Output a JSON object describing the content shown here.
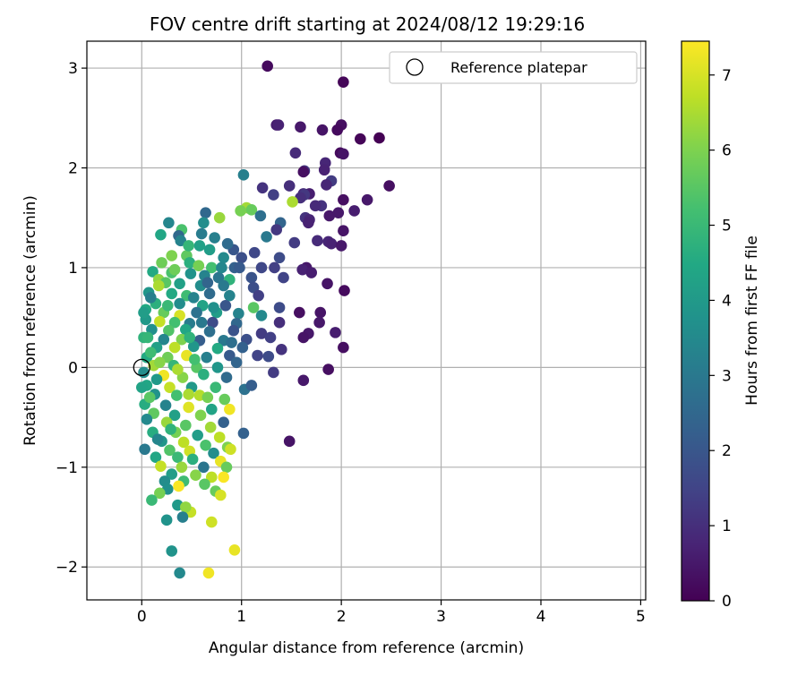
{
  "chart_data": {
    "type": "scatter",
    "title": "FOV centre drift starting at 2024/08/12 19:29:16",
    "xlabel": "Angular distance from reference (arcmin)",
    "ylabel": "Rotation from reference (arcmin)",
    "xlim": [
      -0.55,
      5.05
    ],
    "ylim": [
      -2.33,
      3.27
    ],
    "xticks": [
      0,
      1,
      2,
      3,
      4,
      5
    ],
    "xtick_labels": [
      "0",
      "1",
      "2",
      "3",
      "4",
      "5"
    ],
    "yticks": [
      -2,
      -1,
      0,
      1,
      2,
      3
    ],
    "ytick_labels": [
      "−2",
      "−1",
      "0",
      "1",
      "2",
      "3"
    ],
    "grid": true,
    "legend": {
      "location": "upper right",
      "entries": [
        "Reference platepar"
      ]
    },
    "reference_point": {
      "x": 0.0,
      "y": 0.0
    },
    "colorbar": {
      "label": "Hours from first FF file",
      "colormap": "viridis",
      "range": [
        0,
        7.45
      ],
      "ticks": [
        0,
        1,
        2,
        3,
        4,
        5,
        6,
        7
      ],
      "tick_labels": [
        "0",
        "1",
        "2",
        "3",
        "4",
        "5",
        "6",
        "7"
      ]
    },
    "points": [
      [
        1.26,
        3.02,
        0.2
      ],
      [
        2.02,
        2.86,
        0.1
      ],
      [
        1.35,
        2.43,
        0.6
      ],
      [
        1.37,
        2.43,
        0.7
      ],
      [
        2.0,
        2.43,
        0.3
      ],
      [
        1.96,
        2.38,
        0.2
      ],
      [
        1.81,
        2.38,
        0.4
      ],
      [
        2.19,
        2.29,
        0.1
      ],
      [
        2.38,
        2.3,
        0.0
      ],
      [
        1.59,
        2.41,
        0.5
      ],
      [
        1.54,
        2.15,
        0.9
      ],
      [
        1.99,
        2.15,
        0.2
      ],
      [
        2.02,
        2.14,
        0.4
      ],
      [
        1.84,
        2.05,
        0.8
      ],
      [
        1.63,
        1.97,
        1.2
      ],
      [
        1.83,
        1.98,
        0.7
      ],
      [
        1.62,
        1.96,
        0.3
      ],
      [
        1.02,
        1.93,
        3.2
      ],
      [
        1.48,
        1.82,
        1.0
      ],
      [
        1.9,
        1.87,
        1.3
      ],
      [
        2.48,
        1.82,
        0.3
      ],
      [
        1.85,
        1.83,
        0.8
      ],
      [
        1.68,
        1.74,
        0.6
      ],
      [
        1.62,
        1.74,
        0.9
      ],
      [
        1.21,
        1.8,
        1.1
      ],
      [
        1.63,
        1.73,
        1.2
      ],
      [
        1.59,
        1.7,
        1.0
      ],
      [
        1.32,
        1.73,
        1.4
      ],
      [
        2.26,
        1.68,
        0.5
      ],
      [
        2.02,
        1.68,
        0.3
      ],
      [
        1.51,
        1.66,
        6.5
      ],
      [
        1.8,
        1.62,
        1.1
      ],
      [
        1.74,
        1.62,
        0.9
      ],
      [
        2.13,
        1.57,
        0.6
      ],
      [
        1.97,
        1.55,
        0.5
      ],
      [
        1.05,
        1.6,
        6.4
      ],
      [
        1.1,
        1.58,
        5.7
      ],
      [
        0.99,
        1.57,
        5.9
      ],
      [
        0.64,
        1.55,
        2.5
      ],
      [
        1.19,
        1.52,
        2.7
      ],
      [
        1.39,
        1.45,
        2.4
      ],
      [
        0.27,
        1.45,
        3.4
      ],
      [
        0.78,
        1.5,
        6.3
      ],
      [
        1.64,
        1.5,
        1.1
      ],
      [
        1.68,
        1.48,
        0.8
      ],
      [
        1.88,
        1.52,
        0.5
      ],
      [
        1.67,
        1.45,
        0.7
      ],
      [
        0.4,
        1.38,
        5.3
      ],
      [
        1.35,
        1.38,
        1.2
      ],
      [
        2.02,
        1.37,
        0.4
      ],
      [
        0.6,
        1.34,
        3.1
      ],
      [
        0.19,
        1.33,
        4.4
      ],
      [
        0.37,
        1.32,
        2.5
      ],
      [
        0.73,
        1.3,
        3.2
      ],
      [
        1.25,
        1.31,
        3.0
      ],
      [
        1.76,
        1.27,
        0.9
      ],
      [
        1.87,
        1.26,
        0.8
      ],
      [
        0.39,
        1.27,
        3.3
      ],
      [
        1.53,
        1.25,
        1.3
      ],
      [
        1.9,
        1.24,
        0.7
      ],
      [
        2.0,
        1.22,
        0.5
      ],
      [
        0.58,
        1.22,
        4.2
      ],
      [
        0.68,
        1.18,
        4.1
      ],
      [
        0.92,
        1.18,
        2.0
      ],
      [
        1.13,
        1.15,
        1.6
      ],
      [
        1.0,
        1.1,
        1.8
      ],
      [
        0.45,
        1.12,
        5.6
      ],
      [
        0.3,
        1.12,
        6.0
      ],
      [
        0.82,
        1.1,
        3.5
      ],
      [
        1.38,
        1.1,
        1.7
      ],
      [
        0.2,
        1.05,
        5.8
      ],
      [
        0.48,
        1.05,
        4.7
      ],
      [
        0.57,
        1.02,
        5.9
      ],
      [
        0.7,
        1.0,
        5.2
      ],
      [
        0.93,
        1.0,
        2.3
      ],
      [
        0.98,
        1.0,
        2.1
      ],
      [
        1.2,
        1.0,
        1.6
      ],
      [
        1.33,
        1.0,
        1.4
      ],
      [
        1.65,
        1.0,
        0.5
      ],
      [
        1.61,
        0.98,
        0.7
      ],
      [
        0.11,
        0.96,
        4.5
      ],
      [
        0.3,
        0.95,
        5.3
      ],
      [
        0.49,
        0.94,
        3.8
      ],
      [
        0.63,
        0.92,
        3.3
      ],
      [
        0.77,
        0.9,
        2.9
      ],
      [
        0.88,
        0.88,
        4.8
      ],
      [
        1.1,
        0.9,
        1.9
      ],
      [
        1.42,
        0.9,
        1.5
      ],
      [
        1.7,
        0.95,
        0.6
      ],
      [
        0.17,
        0.88,
        6.2
      ],
      [
        0.24,
        0.85,
        5.5
      ],
      [
        0.38,
        0.84,
        4.2
      ],
      [
        0.59,
        0.82,
        3.6
      ],
      [
        0.82,
        0.82,
        3.0
      ],
      [
        1.12,
        0.8,
        1.8
      ],
      [
        1.86,
        0.84,
        0.4
      ],
      [
        0.07,
        0.75,
        3.9
      ],
      [
        0.3,
        0.74,
        4.5
      ],
      [
        0.45,
        0.72,
        5.1
      ],
      [
        0.68,
        0.74,
        2.6
      ],
      [
        0.88,
        0.72,
        3.3
      ],
      [
        1.17,
        0.72,
        1.4
      ],
      [
        2.03,
        0.77,
        0.2
      ],
      [
        0.14,
        0.64,
        4.7
      ],
      [
        0.38,
        0.64,
        3.6
      ],
      [
        0.61,
        0.62,
        4.3
      ],
      [
        0.84,
        0.62,
        2.0
      ],
      [
        1.12,
        0.6,
        5.5
      ],
      [
        1.38,
        0.6,
        1.7
      ],
      [
        0.04,
        0.58,
        4.5
      ],
      [
        0.22,
        0.55,
        5.7
      ],
      [
        0.38,
        0.52,
        7.0
      ],
      [
        0.55,
        0.55,
        2.8
      ],
      [
        0.75,
        0.55,
        4.1
      ],
      [
        0.97,
        0.54,
        3.3
      ],
      [
        1.2,
        0.52,
        3.5
      ],
      [
        1.58,
        0.55,
        0.3
      ],
      [
        1.79,
        0.55,
        0.4
      ],
      [
        0.04,
        0.48,
        4.0
      ],
      [
        0.18,
        0.46,
        6.8
      ],
      [
        0.33,
        0.45,
        5.2
      ],
      [
        0.48,
        0.44,
        3.1
      ],
      [
        0.71,
        0.45,
        1.7
      ],
      [
        0.95,
        0.44,
        2.5
      ],
      [
        1.38,
        0.45,
        1.0
      ],
      [
        1.78,
        0.45,
        0.5
      ],
      [
        0.1,
        0.38,
        3.7
      ],
      [
        0.27,
        0.37,
        5.4
      ],
      [
        0.44,
        0.38,
        4.4
      ],
      [
        0.68,
        0.36,
        2.7
      ],
      [
        0.92,
        0.37,
        1.9
      ],
      [
        1.2,
        0.34,
        1.3
      ],
      [
        1.67,
        0.34,
        0.5
      ],
      [
        1.94,
        0.35,
        0.6
      ],
      [
        0.02,
        0.3,
        4.8
      ],
      [
        0.22,
        0.28,
        3.4
      ],
      [
        0.4,
        0.28,
        6.0
      ],
      [
        0.58,
        0.27,
        2.2
      ],
      [
        0.82,
        0.27,
        3.0
      ],
      [
        1.05,
        0.28,
        1.8
      ],
      [
        1.29,
        0.3,
        1.4
      ],
      [
        1.62,
        0.3,
        0.4
      ],
      [
        0.15,
        0.2,
        4.2
      ],
      [
        0.33,
        0.2,
        6.7
      ],
      [
        0.52,
        0.21,
        3.9
      ],
      [
        0.76,
        0.19,
        4.5
      ],
      [
        1.01,
        0.2,
        2.3
      ],
      [
        1.4,
        0.18,
        1.1
      ],
      [
        2.02,
        0.2,
        0.3
      ],
      [
        0.05,
        0.1,
        4.5
      ],
      [
        0.26,
        0.1,
        5.8
      ],
      [
        0.45,
        0.12,
        7.2
      ],
      [
        0.65,
        0.1,
        3.2
      ],
      [
        0.88,
        0.12,
        2.1
      ],
      [
        1.16,
        0.12,
        1.5
      ],
      [
        1.27,
        0.11,
        1.7
      ],
      [
        0.12,
        0.02,
        6.4
      ],
      [
        0.32,
        0.02,
        4.9
      ],
      [
        0.55,
        0.0,
        5.5
      ],
      [
        0.76,
        0.0,
        3.9
      ],
      [
        1.32,
        -0.05,
        1.3
      ],
      [
        1.87,
        -0.02,
        0.3
      ],
      [
        0.02,
        -0.05,
        3.6
      ],
      [
        0.22,
        -0.08,
        7.3
      ],
      [
        0.41,
        -0.1,
        6.1
      ],
      [
        0.62,
        -0.07,
        4.7
      ],
      [
        0.85,
        -0.1,
        2.6
      ],
      [
        0.05,
        -0.18,
        4.4
      ],
      [
        0.28,
        -0.2,
        6.8
      ],
      [
        0.5,
        -0.2,
        4.0
      ],
      [
        0.74,
        -0.2,
        5.0
      ],
      [
        1.03,
        -0.22,
        2.8
      ],
      [
        1.62,
        -0.13,
        0.5
      ],
      [
        1.1,
        -0.18,
        2.2
      ],
      [
        0.13,
        -0.27,
        3.8
      ],
      [
        0.35,
        -0.28,
        5.2
      ],
      [
        0.58,
        -0.28,
        6.6
      ],
      [
        0.83,
        -0.32,
        5.7
      ],
      [
        0.03,
        -0.37,
        4.6
      ],
      [
        0.24,
        -0.38,
        3.3
      ],
      [
        0.47,
        -0.4,
        7.1
      ],
      [
        0.7,
        -0.42,
        4.3
      ],
      [
        0.88,
        -0.42,
        7.3
      ],
      [
        0.12,
        -0.46,
        5.6
      ],
      [
        0.33,
        -0.48,
        4.2
      ],
      [
        0.59,
        -0.48,
        6.0
      ],
      [
        0.82,
        -0.55,
        2.3
      ],
      [
        0.05,
        -0.52,
        3.5
      ],
      [
        0.25,
        -0.55,
        6.3
      ],
      [
        0.44,
        -0.58,
        5.5
      ],
      [
        0.69,
        -0.6,
        6.4
      ],
      [
        0.11,
        -0.65,
        4.6
      ],
      [
        0.34,
        -0.65,
        5.9
      ],
      [
        0.56,
        -0.68,
        4.1
      ],
      [
        0.78,
        -0.7,
        6.7
      ],
      [
        1.02,
        -0.66,
        2.3
      ],
      [
        0.2,
        -0.74,
        3.9
      ],
      [
        0.42,
        -0.75,
        6.7
      ],
      [
        0.64,
        -0.78,
        5.3
      ],
      [
        0.86,
        -0.8,
        6.0
      ],
      [
        1.48,
        -0.74,
        0.4
      ],
      [
        0.03,
        -0.82,
        3.0
      ],
      [
        0.28,
        -0.83,
        5.4
      ],
      [
        0.48,
        -0.84,
        6.9
      ],
      [
        0.72,
        -0.86,
        3.6
      ],
      [
        0.89,
        -0.82,
        6.9
      ],
      [
        0.14,
        -0.9,
        4.4
      ],
      [
        0.36,
        -0.9,
        5.0
      ],
      [
        0.51,
        -0.92,
        4.7
      ],
      [
        0.79,
        -0.94,
        7.2
      ],
      [
        0.19,
        -0.99,
        6.8
      ],
      [
        0.4,
        -1.0,
        6.3
      ],
      [
        0.62,
        -1.0,
        2.9
      ],
      [
        0.85,
        -1.0,
        5.7
      ],
      [
        0.3,
        -1.07,
        4.1
      ],
      [
        0.54,
        -1.08,
        6.1
      ],
      [
        0.7,
        -1.1,
        6.7
      ],
      [
        0.23,
        -1.14,
        3.6
      ],
      [
        0.42,
        -1.14,
        5.1
      ],
      [
        0.63,
        -1.17,
        5.5
      ],
      [
        0.82,
        -1.1,
        7.4
      ],
      [
        0.37,
        -1.19,
        7.4
      ],
      [
        0.26,
        -1.22,
        3.7
      ],
      [
        0.18,
        -1.26,
        5.9
      ],
      [
        0.74,
        -1.24,
        5.7
      ],
      [
        0.79,
        -1.28,
        7.0
      ],
      [
        0.1,
        -1.33,
        5.0
      ],
      [
        0.36,
        -1.38,
        4.0
      ],
      [
        0.49,
        -1.45,
        6.8
      ],
      [
        0.44,
        -1.4,
        6.2
      ],
      [
        0.41,
        -1.5,
        3.2
      ],
      [
        0.25,
        -1.53,
        3.8
      ],
      [
        0.7,
        -1.55,
        6.9
      ],
      [
        0.3,
        -1.84,
        3.8
      ],
      [
        0.93,
        -1.83,
        7.2
      ],
      [
        0.38,
        -2.06,
        3.5
      ],
      [
        0.67,
        -2.06,
        7.3
      ],
      [
        0.02,
        0.55,
        4.1
      ],
      [
        0.06,
        0.3,
        4.9
      ],
      [
        0.09,
        0.15,
        5.1
      ],
      [
        0.0,
        -0.2,
        4.3
      ],
      [
        0.08,
        -0.3,
        5.5
      ],
      [
        0.15,
        -0.12,
        4.0
      ],
      [
        0.18,
        0.05,
        6.1
      ],
      [
        0.36,
        -0.02,
        6.5
      ],
      [
        0.48,
        0.3,
        4.8
      ],
      [
        0.53,
        0.08,
        5.2
      ],
      [
        0.66,
        -0.3,
        5.9
      ],
      [
        0.6,
        0.45,
        3.0
      ],
      [
        0.72,
        0.6,
        3.7
      ],
      [
        0.9,
        0.25,
        2.7
      ],
      [
        0.95,
        0.05,
        2.4
      ],
      [
        0.47,
        -0.27,
        6.5
      ],
      [
        0.29,
        -0.62,
        4.8
      ],
      [
        0.16,
        -0.72,
        3.4
      ],
      [
        0.09,
        0.7,
        3.2
      ],
      [
        0.26,
        0.62,
        5.0
      ],
      [
        0.52,
        0.7,
        3.3
      ],
      [
        0.66,
        0.85,
        2.4
      ],
      [
        0.8,
        1.0,
        3.4
      ],
      [
        0.86,
        1.24,
        2.6
      ],
      [
        0.62,
        1.45,
        3.6
      ],
      [
        0.47,
        1.22,
        4.9
      ],
      [
        0.33,
        0.98,
        5.8
      ],
      [
        0.17,
        0.82,
        6.5
      ]
    ]
  }
}
